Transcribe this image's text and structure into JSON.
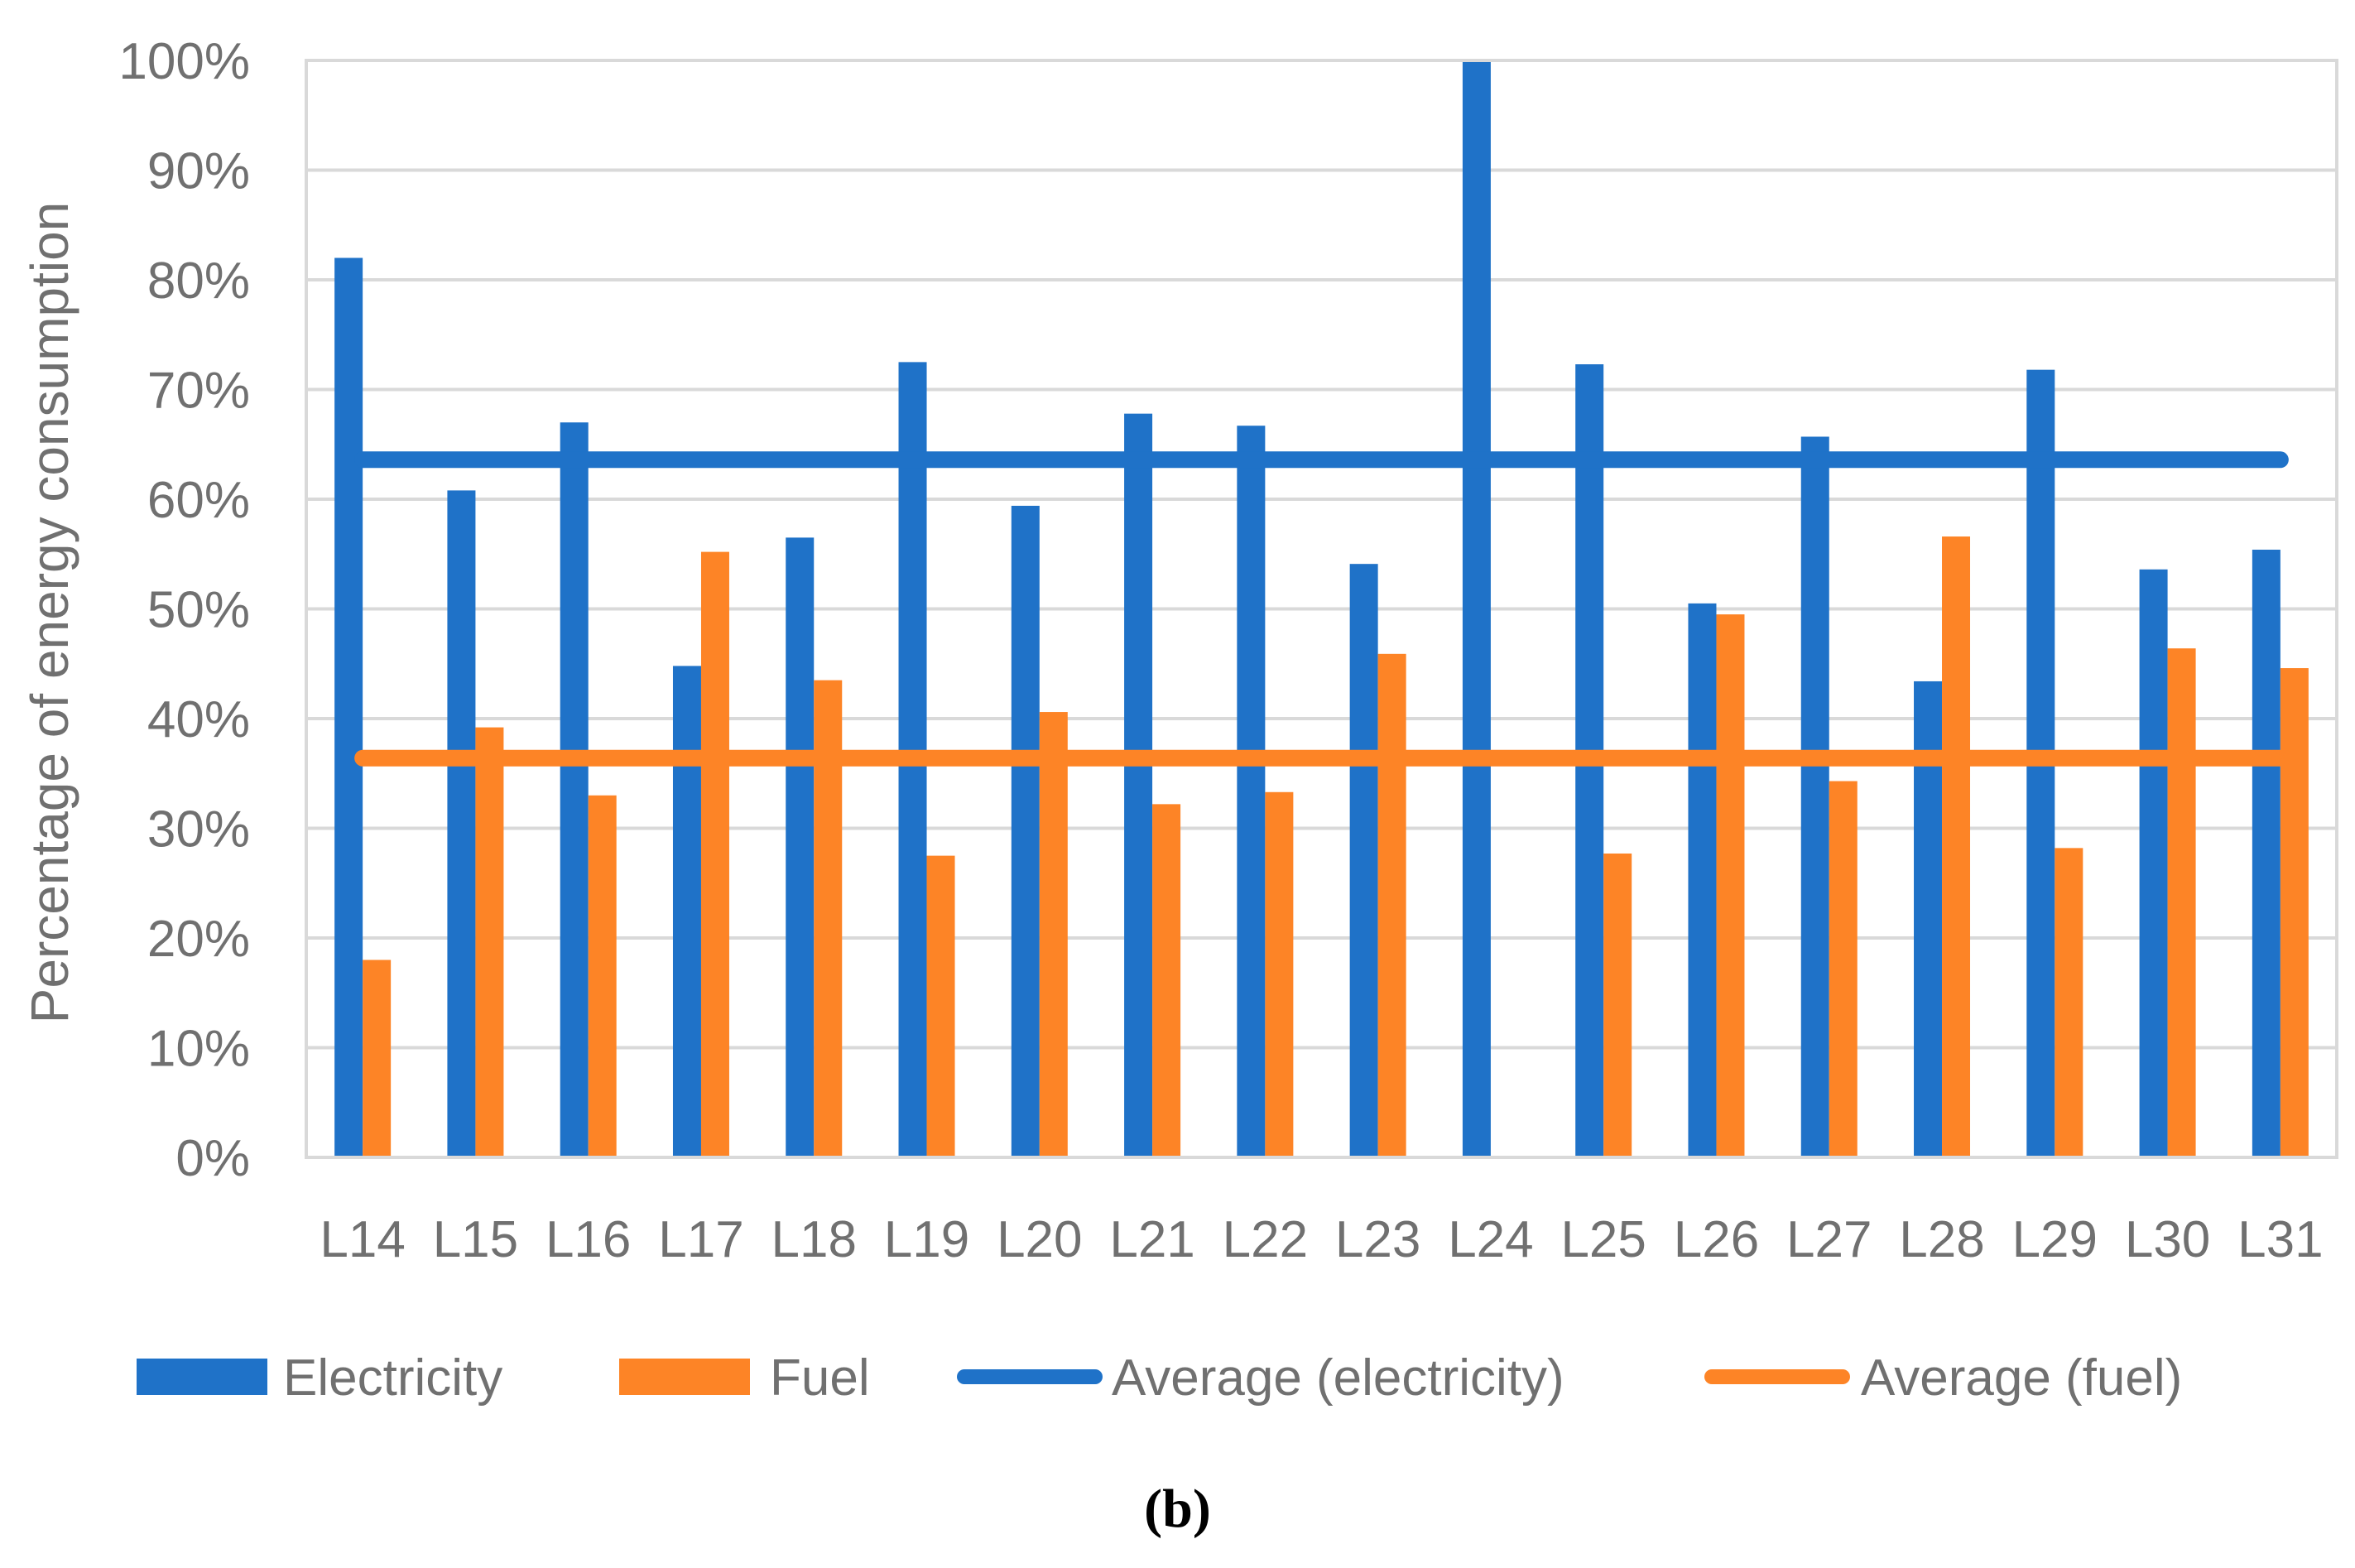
{
  "chart_data": {
    "type": "bar",
    "title": "",
    "xlabel": "",
    "ylabel": "Percentage of energy consumption",
    "ylim": [
      0,
      100
    ],
    "ytick_values": [
      0,
      10,
      20,
      30,
      40,
      50,
      60,
      70,
      80,
      90,
      100
    ],
    "ytick_labels": [
      "0%",
      "10%",
      "20%",
      "30%",
      "40%",
      "50%",
      "60%",
      "70%",
      "80%",
      "90%",
      "100%"
    ],
    "categories": [
      "L14",
      "L15",
      "L16",
      "L17",
      "L18",
      "L19",
      "L20",
      "L21",
      "L22",
      "L23",
      "L24",
      "L25",
      "L26",
      "L27",
      "L28",
      "L29",
      "L30",
      "L31"
    ],
    "series": [
      {
        "name": "Electricity",
        "kind": "bar",
        "color": "#1f72c8",
        "values": [
          82,
          60.8,
          67,
          44.8,
          56.5,
          72.5,
          59.4,
          67.8,
          66.7,
          54.1,
          100,
          72.3,
          50.5,
          65.7,
          43.4,
          71.8,
          53.6,
          55.4
        ]
      },
      {
        "name": "Fuel",
        "kind": "bar",
        "color": "#fd8426",
        "values": [
          18,
          39.2,
          33,
          55.2,
          43.5,
          27.5,
          40.6,
          32.2,
          33.3,
          45.9,
          0,
          27.7,
          49.5,
          34.3,
          56.6,
          28.2,
          46.4,
          44.6
        ]
      },
      {
        "name": "Average (electricity)",
        "kind": "line",
        "color": "#1f72c8",
        "value": 63.6
      },
      {
        "name": "Average (fuel)",
        "kind": "line",
        "color": "#fd8426",
        "value": 36.4
      }
    ],
    "grid": true,
    "legend_position": "bottom"
  },
  "caption": "(b)"
}
